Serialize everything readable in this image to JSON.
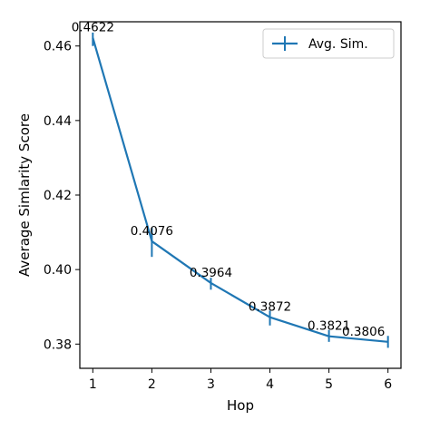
{
  "chart_data": {
    "type": "line",
    "title": "",
    "xlabel": "Hop",
    "ylabel": "Average Simlarity Score",
    "x": [
      1,
      2,
      3,
      4,
      5,
      6
    ],
    "x_ticks": [
      "1",
      "2",
      "3",
      "4",
      "5",
      "6"
    ],
    "y_ticks": [
      "0.38",
      "0.40",
      "0.42",
      "0.44",
      "0.46"
    ],
    "xlim": [
      0.78,
      6.22
    ],
    "ylim": [
      0.3735,
      0.4665
    ],
    "grid": false,
    "legend": "top-right",
    "color": "#1f77b4",
    "series": [
      {
        "name": "Avg. Sim.",
        "values": [
          0.4622,
          0.4076,
          0.3964,
          0.3872,
          0.3821,
          0.3806
        ],
        "labels": [
          "0.4622",
          "0.4076",
          "0.3964",
          "0.3872",
          "0.3821",
          "0.3806"
        ],
        "error_low": [
          0.46,
          0.4034,
          0.3946,
          0.385,
          0.3806,
          0.379
        ],
        "error_high": [
          0.4636,
          0.4112,
          0.3978,
          0.389,
          0.3838,
          0.3822
        ]
      }
    ]
  }
}
